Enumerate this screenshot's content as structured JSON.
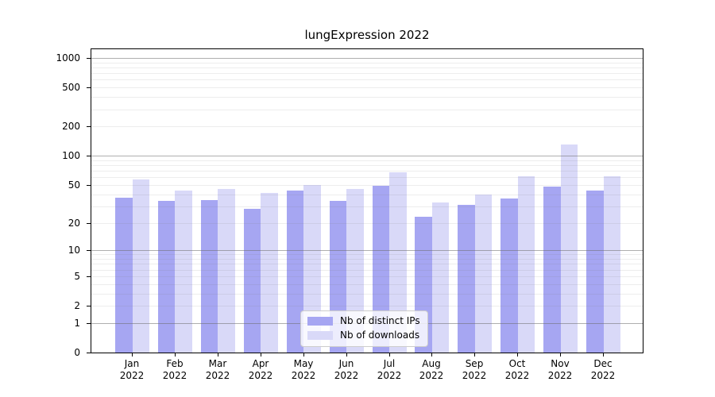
{
  "chart_data": {
    "type": "bar",
    "title": "lungExpression 2022",
    "categories": [
      "Jan",
      "Feb",
      "Mar",
      "Apr",
      "May",
      "Jun",
      "Jul",
      "Aug",
      "Sep",
      "Oct",
      "Nov",
      "Dec"
    ],
    "category_year": "2022",
    "series": [
      {
        "name": "Nb of distinct IPs",
        "color": "#a6a6f2",
        "values": [
          37,
          34,
          35,
          28,
          44,
          34,
          49,
          23,
          31,
          36,
          48,
          44
        ]
      },
      {
        "name": "Nb of downloads",
        "color": "#d9d9f8",
        "values": [
          57,
          44,
          45,
          41,
          50,
          45,
          68,
          33,
          40,
          62,
          130,
          62
        ]
      }
    ],
    "y_ticks": [
      0,
      1,
      2,
      5,
      10,
      20,
      50,
      100,
      200,
      500,
      1000
    ],
    "scale": "log1p",
    "ylim": [
      0,
      1000
    ],
    "grid": true,
    "legend_position": "lower center",
    "axis_color": "#000000",
    "major_grid_color": "#b0b0b0",
    "minor_grid_color": "#e9e9e9",
    "background_color": "#ffffff"
  }
}
